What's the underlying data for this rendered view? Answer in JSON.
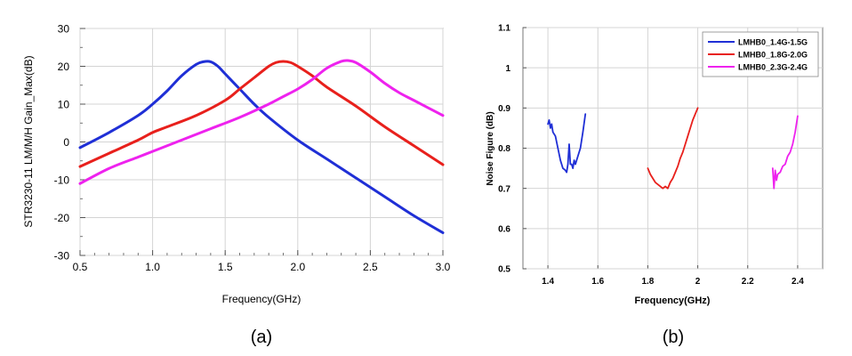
{
  "chart_data": [
    {
      "type": "line",
      "panel_label": "(a)",
      "xlabel": "Frequency(GHz)",
      "ylabel": "STR3230-11 LM/M/H Gain_Max(dB)",
      "xlim": [
        0.5,
        3.0
      ],
      "ylim": [
        -30,
        30
      ],
      "x_ticks": [
        "0.5",
        "1.0",
        "1.5",
        "2.0",
        "2.5",
        "3.0"
      ],
      "y_ticks": [
        "-30",
        "-20",
        "-10",
        "0",
        "10",
        "20",
        "30"
      ],
      "grid": true,
      "series": [
        {
          "color": "#1f2fd6",
          "x": [
            0.5,
            0.7,
            0.9,
            1.0,
            1.1,
            1.2,
            1.3,
            1.35,
            1.4,
            1.45,
            1.5,
            1.6,
            1.7,
            1.8,
            2.0,
            2.2,
            2.4,
            2.6,
            2.8,
            3.0
          ],
          "y": [
            -1.5,
            2.5,
            7.0,
            10.0,
            13.5,
            17.5,
            20.5,
            21.2,
            21.2,
            20.0,
            18.0,
            14.0,
            10.0,
            6.5,
            0.5,
            -4.5,
            -9.5,
            -14.5,
            -19.5,
            -24.0
          ]
        },
        {
          "color": "#e8201c",
          "x": [
            0.5,
            0.7,
            0.9,
            1.0,
            1.1,
            1.3,
            1.5,
            1.6,
            1.7,
            1.8,
            1.85,
            1.9,
            1.95,
            2.0,
            2.1,
            2.2,
            2.4,
            2.6,
            2.8,
            3.0
          ],
          "y": [
            -6.5,
            -3.0,
            0.5,
            2.5,
            4.0,
            7.0,
            11.0,
            14.0,
            17.0,
            20.0,
            21.0,
            21.3,
            21.0,
            20.0,
            17.5,
            14.5,
            9.5,
            4.0,
            -1.0,
            -6.0
          ]
        },
        {
          "color": "#ee22ee",
          "x": [
            0.5,
            0.7,
            0.9,
            1.0,
            1.2,
            1.4,
            1.6,
            1.8,
            1.9,
            2.0,
            2.1,
            2.2,
            2.3,
            2.35,
            2.4,
            2.5,
            2.6,
            2.7,
            2.8,
            3.0
          ],
          "y": [
            -11.0,
            -7.0,
            -4.0,
            -2.5,
            0.5,
            3.5,
            6.5,
            10.0,
            12.0,
            14.0,
            16.5,
            19.5,
            21.3,
            21.5,
            21.0,
            18.5,
            15.5,
            13.0,
            11.0,
            7.0
          ]
        }
      ]
    },
    {
      "type": "line",
      "panel_label": "(b)",
      "xlabel": "Frequency(GHz)",
      "ylabel": "Noise Figure (dB)",
      "xlim": [
        1.3,
        2.5
      ],
      "ylim": [
        0.5,
        1.1
      ],
      "x_ticks": [
        "1.4",
        "1.6",
        "1.8",
        "2",
        "2.2",
        "2.4"
      ],
      "y_ticks": [
        "0.5",
        "0.6",
        "0.7",
        "0.8",
        "0.9",
        "1",
        "1.1"
      ],
      "grid": true,
      "legend_position": "top-right",
      "series": [
        {
          "name": "LMHB0_1.4G-1.5G",
          "color": "#1f2fd6",
          "x": [
            1.4,
            1.405,
            1.41,
            1.415,
            1.42,
            1.43,
            1.44,
            1.45,
            1.46,
            1.47,
            1.475,
            1.48,
            1.485,
            1.49,
            1.495,
            1.5,
            1.505,
            1.51,
            1.52,
            1.53,
            1.54,
            1.55
          ],
          "y": [
            0.86,
            0.87,
            0.85,
            0.86,
            0.84,
            0.83,
            0.8,
            0.77,
            0.75,
            0.745,
            0.74,
            0.76,
            0.81,
            0.76,
            0.76,
            0.75,
            0.77,
            0.76,
            0.78,
            0.8,
            0.84,
            0.885
          ]
        },
        {
          "name": "LMHB0_1.8G-2.0G",
          "color": "#e8201c",
          "x": [
            1.8,
            1.81,
            1.82,
            1.83,
            1.84,
            1.85,
            1.86,
            1.87,
            1.88,
            1.89,
            1.9,
            1.91,
            1.92,
            1.93,
            1.94,
            1.95,
            1.96,
            1.97,
            1.98,
            1.99,
            2.0
          ],
          "y": [
            0.75,
            0.735,
            0.725,
            0.715,
            0.71,
            0.705,
            0.7,
            0.705,
            0.7,
            0.715,
            0.725,
            0.74,
            0.755,
            0.775,
            0.79,
            0.81,
            0.83,
            0.85,
            0.87,
            0.885,
            0.9
          ]
        },
        {
          "name": "LMHB0_2.3G-2.4G",
          "color": "#ee22ee",
          "x": [
            2.3,
            2.305,
            2.31,
            2.315,
            2.32,
            2.33,
            2.34,
            2.35,
            2.36,
            2.37,
            2.38,
            2.39,
            2.4
          ],
          "y": [
            0.75,
            0.7,
            0.745,
            0.72,
            0.735,
            0.74,
            0.755,
            0.76,
            0.78,
            0.79,
            0.81,
            0.84,
            0.88
          ]
        }
      ]
    }
  ]
}
